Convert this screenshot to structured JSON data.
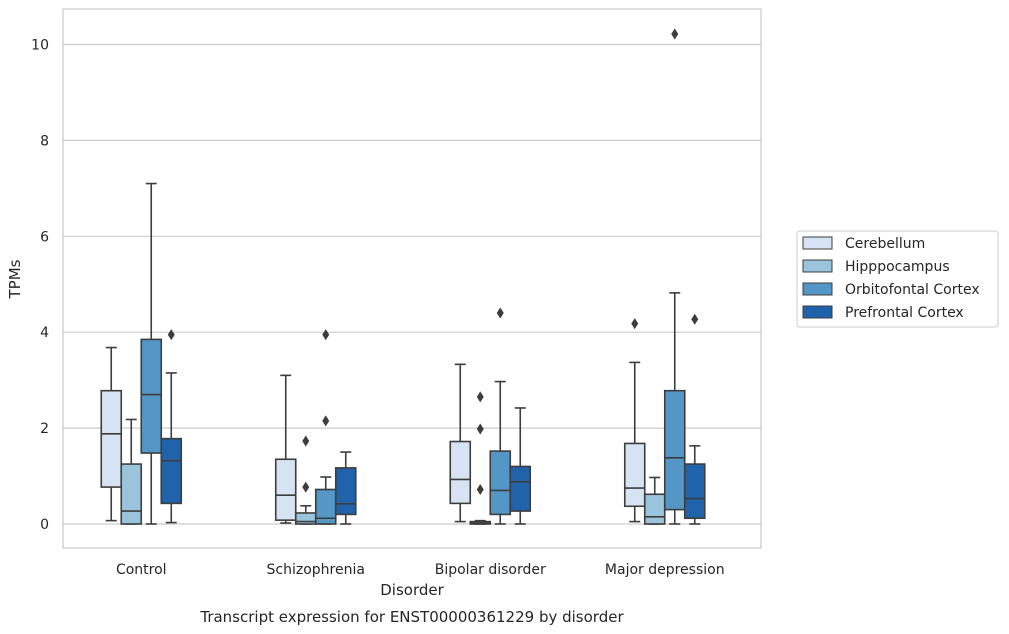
{
  "caption": "Transcript expression for ENST00000361229 by disorder",
  "chart_data": {
    "type": "box",
    "xlabel": "Disorder",
    "ylabel": "TPMs",
    "ylim": [
      -0.5,
      10.75
    ],
    "yticks": [
      0,
      2,
      4,
      6,
      8,
      10
    ],
    "grid": "horizontal",
    "legend_position": "right",
    "categories": [
      "Control",
      "Schizophrenia",
      "Bipolar disorder",
      "Major depression"
    ],
    "series": [
      {
        "name": "Cerebellum",
        "color": "#d6e3f2",
        "boxes": [
          {
            "whislo": 0.07,
            "q1": 0.77,
            "med": 1.88,
            "q3": 2.78,
            "whishi": 3.68,
            "fliers": []
          },
          {
            "whislo": 0.02,
            "q1": 0.08,
            "med": 0.6,
            "q3": 1.35,
            "whishi": 3.1,
            "fliers": []
          },
          {
            "whislo": 0.05,
            "q1": 0.43,
            "med": 0.93,
            "q3": 1.72,
            "whishi": 3.33,
            "fliers": []
          },
          {
            "whislo": 0.05,
            "q1": 0.37,
            "med": 0.75,
            "q3": 1.68,
            "whishi": 3.37,
            "fliers": [
              4.18
            ]
          }
        ]
      },
      {
        "name": "Hipppocampus",
        "color": "#9ac3dc",
        "boxes": [
          {
            "whislo": 0.0,
            "q1": 0.0,
            "med": 0.27,
            "q3": 1.25,
            "whishi": 2.18,
            "fliers": []
          },
          {
            "whislo": 0.0,
            "q1": 0.0,
            "med": 0.05,
            "q3": 0.23,
            "whishi": 0.38,
            "fliers": [
              0.77,
              1.73
            ]
          },
          {
            "whislo": 0.0,
            "q1": 0.0,
            "med": 0.02,
            "q3": 0.05,
            "whishi": 0.07,
            "fliers": [
              0.72,
              1.98,
              2.65
            ]
          },
          {
            "whislo": 0.0,
            "q1": 0.0,
            "med": 0.15,
            "q3": 0.62,
            "whishi": 0.97,
            "fliers": []
          }
        ]
      },
      {
        "name": "Orbitofontal Cortex",
        "color": "#5497c7",
        "boxes": [
          {
            "whislo": 0.0,
            "q1": 1.48,
            "med": 2.7,
            "q3": 3.85,
            "whishi": 7.1,
            "fliers": []
          },
          {
            "whislo": 0.0,
            "q1": 0.0,
            "med": 0.12,
            "q3": 0.72,
            "whishi": 0.98,
            "fliers": [
              2.15,
              3.95
            ]
          },
          {
            "whislo": 0.0,
            "q1": 0.2,
            "med": 0.7,
            "q3": 1.52,
            "whishi": 2.97,
            "fliers": [
              4.4
            ]
          },
          {
            "whislo": 0.0,
            "q1": 0.3,
            "med": 1.38,
            "q3": 2.78,
            "whishi": 4.82,
            "fliers": [
              10.22
            ]
          }
        ]
      },
      {
        "name": "Prefrontal Cortex",
        "color": "#2163aa",
        "boxes": [
          {
            "whislo": 0.03,
            "q1": 0.43,
            "med": 1.32,
            "q3": 1.78,
            "whishi": 3.15,
            "fliers": [
              3.95
            ]
          },
          {
            "whislo": 0.0,
            "q1": 0.2,
            "med": 0.42,
            "q3": 1.17,
            "whishi": 1.5,
            "fliers": []
          },
          {
            "whislo": 0.0,
            "q1": 0.27,
            "med": 0.88,
            "q3": 1.2,
            "whishi": 2.42,
            "fliers": []
          },
          {
            "whislo": 0.0,
            "q1": 0.12,
            "med": 0.53,
            "q3": 1.25,
            "whishi": 1.63,
            "fliers": [
              4.27
            ]
          }
        ]
      }
    ]
  }
}
